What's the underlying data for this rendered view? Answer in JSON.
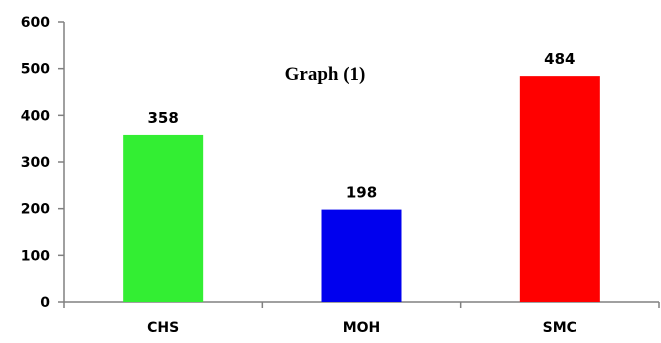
{
  "chart_data": {
    "type": "bar",
    "title": "Graph (1)",
    "xlabel": "",
    "ylabel": "",
    "categories": [
      "CHS",
      "MOH",
      "SMC"
    ],
    "values": [
      358,
      198,
      484
    ],
    "data_labels": [
      "358",
      "198",
      "484"
    ],
    "colors": [
      "#33ee33",
      "#0000ee",
      "#ff0000"
    ],
    "ylim": [
      0,
      600
    ],
    "yticks": [
      0,
      100,
      200,
      300,
      400,
      500,
      600
    ],
    "ytick_labels": [
      "0",
      "100",
      "200",
      "300",
      "400",
      "500",
      "600"
    ],
    "grid": false,
    "legend": "none"
  }
}
